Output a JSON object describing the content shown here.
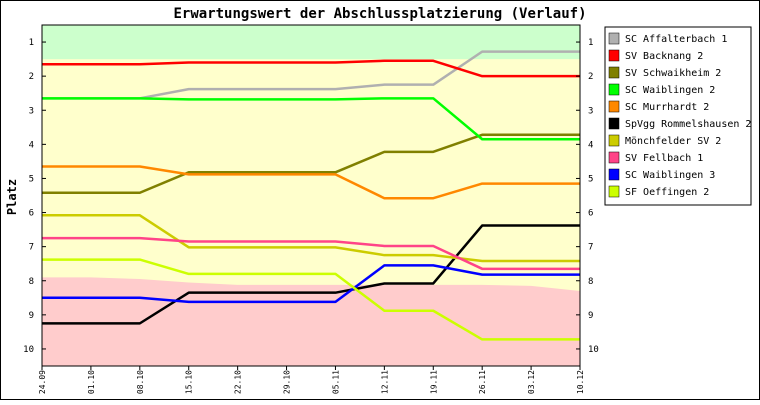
{
  "chart_data": {
    "type": "line",
    "title": "Erwartungswert der Abschlussplatzierung (Verlauf)",
    "ylabel": "Platz",
    "xlabel": "",
    "x": [
      "24.09",
      "01.10",
      "08.10",
      "15.10",
      "22.10",
      "29.10",
      "05.11",
      "12.11",
      "19.11",
      "26.11",
      "03.12",
      "10.12"
    ],
    "y_ticks": [
      "1",
      "2",
      "3",
      "4",
      "5",
      "6",
      "7",
      "8",
      "9",
      "10"
    ],
    "ylim": [
      0.5,
      10.5
    ],
    "y_inverted": true,
    "grid": false,
    "legend_position": "right",
    "zones": {
      "promotion_color": "#ccffcc",
      "middle_color": "#ffffcc",
      "relegation_color": "#ffcccc",
      "promotion_lower_edge": [
        1.5,
        1.5,
        1.5,
        1.5,
        1.5,
        1.5,
        1.5,
        1.5,
        1.5,
        1.5,
        1.5,
        1.5
      ],
      "relegation_upper_edge": [
        7.9,
        7.9,
        7.95,
        8.05,
        8.12,
        8.12,
        8.12,
        8.12,
        8.12,
        8.12,
        8.15,
        8.3
      ]
    },
    "series": [
      {
        "name": "SC Affalterbach 1",
        "color": "#b0b0b0",
        "values": [
          2.65,
          2.65,
          2.65,
          2.38,
          2.38,
          2.38,
          2.38,
          2.25,
          2.25,
          1.28,
          1.28,
          1.28
        ]
      },
      {
        "name": "SV Backnang 2",
        "color": "#ff0000",
        "values": [
          1.65,
          1.65,
          1.65,
          1.6,
          1.6,
          1.6,
          1.6,
          1.55,
          1.55,
          2.0,
          2.0,
          2.0
        ]
      },
      {
        "name": "SV Schwaikheim 2",
        "color": "#808000",
        "values": [
          5.42,
          5.42,
          5.42,
          4.82,
          4.82,
          4.82,
          4.82,
          4.22,
          4.22,
          3.72,
          3.72,
          3.72
        ]
      },
      {
        "name": "SC Waiblingen 2",
        "color": "#00ff00",
        "values": [
          2.65,
          2.65,
          2.65,
          2.68,
          2.68,
          2.68,
          2.68,
          2.65,
          2.65,
          3.85,
          3.85,
          3.85
        ]
      },
      {
        "name": "SC Murrhardt 2",
        "color": "#ff8800",
        "values": [
          4.65,
          4.65,
          4.65,
          4.88,
          4.88,
          4.88,
          4.88,
          5.58,
          5.58,
          5.15,
          5.15,
          5.15
        ]
      },
      {
        "name": "SpVgg Rommelshausen 2",
        "color": "#000000",
        "values": [
          9.25,
          9.25,
          9.25,
          8.35,
          8.35,
          8.35,
          8.35,
          8.08,
          8.08,
          6.38,
          6.38,
          6.38
        ]
      },
      {
        "name": "Mönchfelder SV 2",
        "color": "#cccc00",
        "values": [
          6.08,
          6.08,
          6.08,
          7.02,
          7.02,
          7.02,
          7.02,
          7.25,
          7.25,
          7.42,
          7.42,
          7.42
        ]
      },
      {
        "name": "SV Fellbach 1",
        "color": "#ff4488",
        "values": [
          6.75,
          6.75,
          6.75,
          6.85,
          6.85,
          6.85,
          6.85,
          6.98,
          6.98,
          7.65,
          7.65,
          7.65
        ]
      },
      {
        "name": "SC Waiblingen 3",
        "color": "#0000ff",
        "values": [
          8.5,
          8.5,
          8.5,
          8.62,
          8.62,
          8.62,
          8.62,
          7.55,
          7.55,
          7.82,
          7.82,
          7.82
        ]
      },
      {
        "name": "SF Oeffingen 2",
        "color": "#ccff00",
        "values": [
          7.38,
          7.38,
          7.38,
          7.8,
          7.8,
          7.8,
          7.8,
          8.88,
          8.88,
          9.72,
          9.72,
          9.72
        ]
      }
    ]
  }
}
